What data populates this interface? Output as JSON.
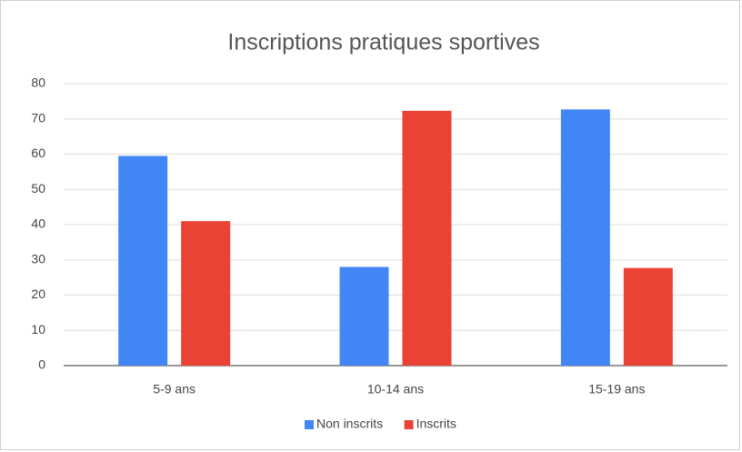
{
  "chart_data": {
    "type": "bar",
    "title": "Inscriptions pratiques sportives",
    "categories": [
      "5-9 ans",
      "10-14 ans",
      "15-19 ans"
    ],
    "series": [
      {
        "name": "Non inscrits",
        "color": "#4285f4",
        "values": [
          59.5,
          28,
          72.7
        ]
      },
      {
        "name": "Inscrits",
        "color": "#ea4335",
        "values": [
          41,
          72.3,
          27.7
        ]
      }
    ],
    "ylim": [
      0,
      80
    ],
    "yticks": [
      0,
      10,
      20,
      30,
      40,
      50,
      60,
      70,
      80
    ],
    "grid": true,
    "legend": "bottom"
  }
}
